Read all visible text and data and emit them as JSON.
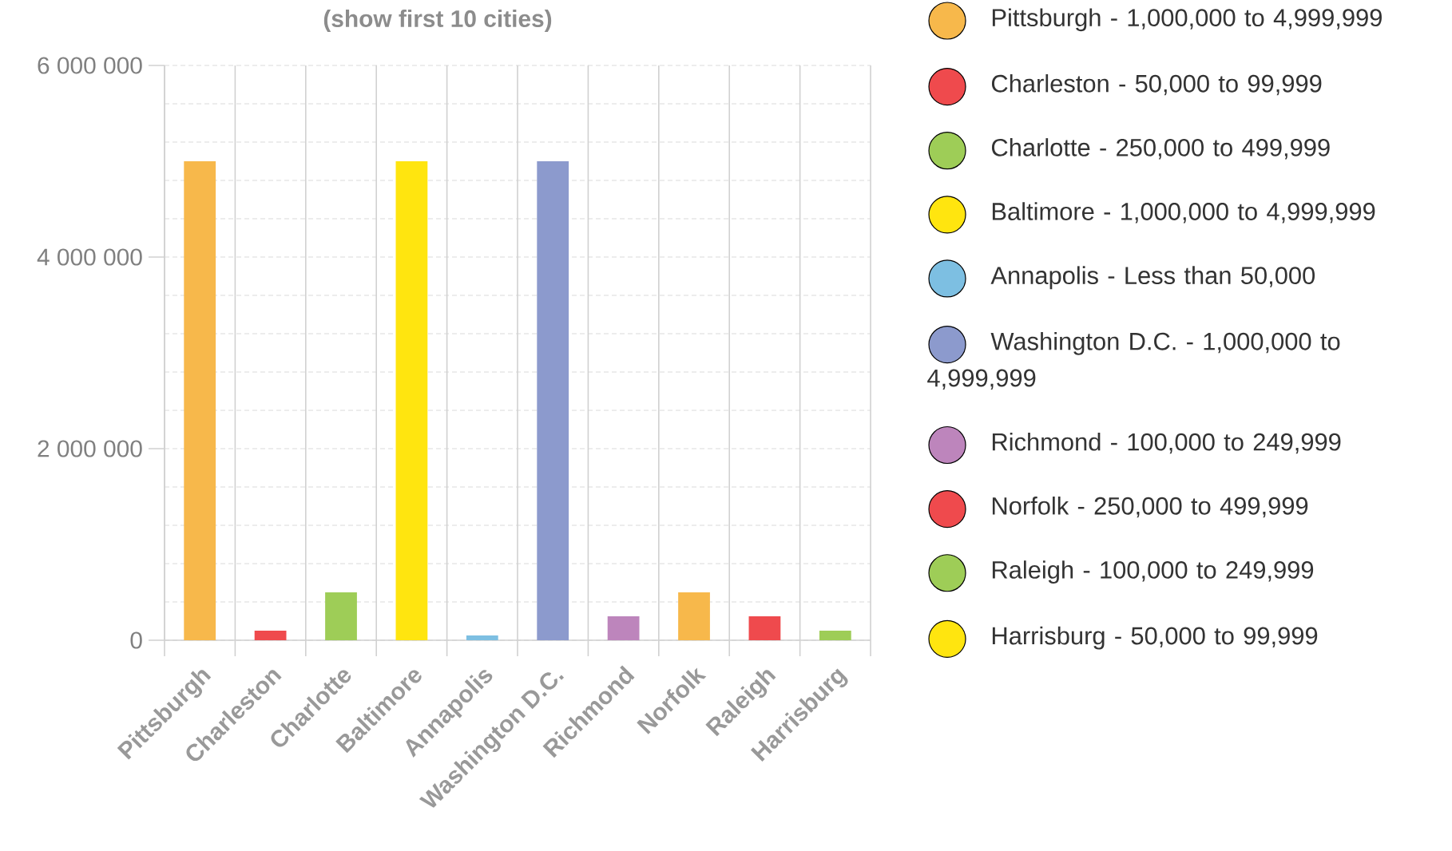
{
  "chart_data": [
    {
      "type": "bar",
      "title": "(show first 10 cities)",
      "categories": [
        "Pittsburgh",
        "Charleston",
        "Charlotte",
        "Baltimore",
        "Annapolis",
        "Washington D.C.",
        "Richmond",
        "Norfolk",
        "Raleigh",
        "Harrisburg"
      ],
      "values": [
        5000000,
        100000,
        500000,
        5000000,
        50000,
        5000000,
        250000,
        500000,
        250000,
        100000
      ],
      "colors": [
        "#f7b84b",
        "#ef4a4d",
        "#9ecd57",
        "#ffe50f",
        "#7dbfe2",
        "#8c9acd",
        "#bd85bc",
        "#f7b84b",
        "#ef4a4d",
        "#9ecd57"
      ],
      "ylim": [
        0,
        6000000
      ],
      "yticks": [
        {
          "value": 0,
          "label": "0"
        },
        {
          "value": 400000,
          "label": null
        },
        {
          "value": 800000,
          "label": null
        },
        {
          "value": 1200000,
          "label": null
        },
        {
          "value": 1600000,
          "label": null
        },
        {
          "value": 2000000,
          "label": "2 000 000"
        },
        {
          "value": 2400000,
          "label": null
        },
        {
          "value": 2800000,
          "label": null
        },
        {
          "value": 3200000,
          "label": null
        },
        {
          "value": 3600000,
          "label": null
        },
        {
          "value": 4000000,
          "label": "4 000 000"
        },
        {
          "value": 4400000,
          "label": null
        },
        {
          "value": 4800000,
          "label": null
        },
        {
          "value": 5200000,
          "label": null
        },
        {
          "value": 5600000,
          "label": null
        },
        {
          "value": 6000000,
          "label": "6 000 000"
        }
      ],
      "grid": true
    },
    {
      "type": "other",
      "categories": [
        "Pittsburgh - 1,000,000 to 4,999,999",
        "Charleston - 50,000 to 99,999",
        "Charlotte - 250,000 to 499,999",
        "Baltimore - 1,000,000 to 4,999,999",
        "Annapolis - Less than 50,000",
        "Washington D.C. - 1,000,000 to 4,999,999",
        "Richmond - 100,000 to 249,999",
        "Norfolk - 250,000 to 499,999",
        "Raleigh - 100,000 to 249,999",
        "Harrisburg - 50,000 to 99,999"
      ],
      "colors": [
        "#f7b84b",
        "#ef4a4d",
        "#9ecd57",
        "#ffe50f",
        "#7dbfe2",
        "#8c9acd",
        "#bd85bc",
        "#ef4a4d",
        "#9ecd57",
        "#ffe50f"
      ]
    }
  ]
}
